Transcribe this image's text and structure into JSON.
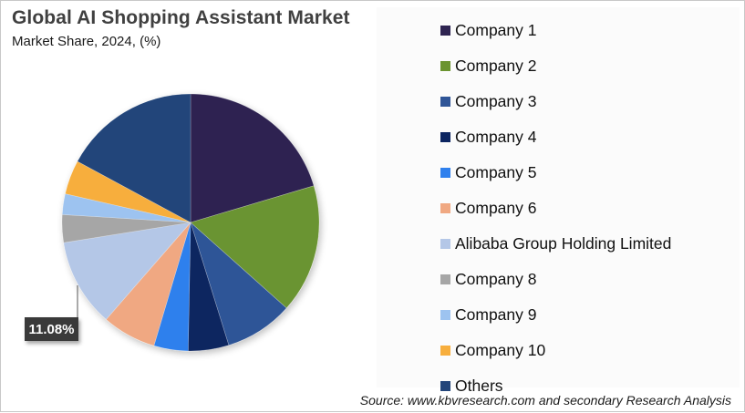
{
  "header": {
    "title": "Global AI Shopping Assistant Market",
    "subtitle": "Market Share, 2024, (%)"
  },
  "footer": {
    "source": "Source: www.kbvresearch.com and secondary Research Analysis"
  },
  "callout": {
    "label": "11.08%",
    "target": "Alibaba Group Holding Limited"
  },
  "chart_data": {
    "type": "pie",
    "title": "Global AI Shopping Assistant Market",
    "subtitle": "Market Share, 2024, (%)",
    "start_angle_deg": 0,
    "direction": "clockwise",
    "legend_position": "right",
    "categories": [
      "Company 1",
      "Company 2",
      "Company 3",
      "Company 4",
      "Company 5",
      "Company 6",
      "Alibaba Group Holding Limited",
      "Company 8",
      "Company 9",
      "Company 10",
      "Others"
    ],
    "values": [
      20.4,
      16.2,
      8.6,
      5.1,
      4.3,
      6.8,
      11.08,
      3.5,
      2.6,
      4.3,
      17.12
    ],
    "colors": [
      "#2e2451",
      "#6b9430",
      "#2f5597",
      "#0c2561",
      "#2f80ed",
      "#f0a882",
      "#b4c7e7",
      "#a6a6a6",
      "#9dc3f0",
      "#f7ae3d",
      "#23457a"
    ],
    "data_labels": [
      {
        "category": "Alibaba Group Holding Limited",
        "text": "11.08%"
      }
    ],
    "note": "Only the Alibaba slice is labeled (11.08%); other values estimated from slice angles."
  },
  "legend": {
    "items": [
      {
        "label": "Company 1",
        "color": "#2e2451"
      },
      {
        "label": "Company 2",
        "color": "#6b9430"
      },
      {
        "label": "Company 3",
        "color": "#2f5597"
      },
      {
        "label": "Company 4",
        "color": "#0c2561"
      },
      {
        "label": "Company 5",
        "color": "#2f80ed"
      },
      {
        "label": "Company 6",
        "color": "#f0a882"
      },
      {
        "label": "Alibaba Group Holding Limited",
        "color": "#b4c7e7"
      },
      {
        "label": "Company 8",
        "color": "#a6a6a6"
      },
      {
        "label": "Company 9",
        "color": "#9dc3f0"
      },
      {
        "label": "Company 10",
        "color": "#f7ae3d"
      },
      {
        "label": "Others",
        "color": "#23457a"
      }
    ]
  }
}
